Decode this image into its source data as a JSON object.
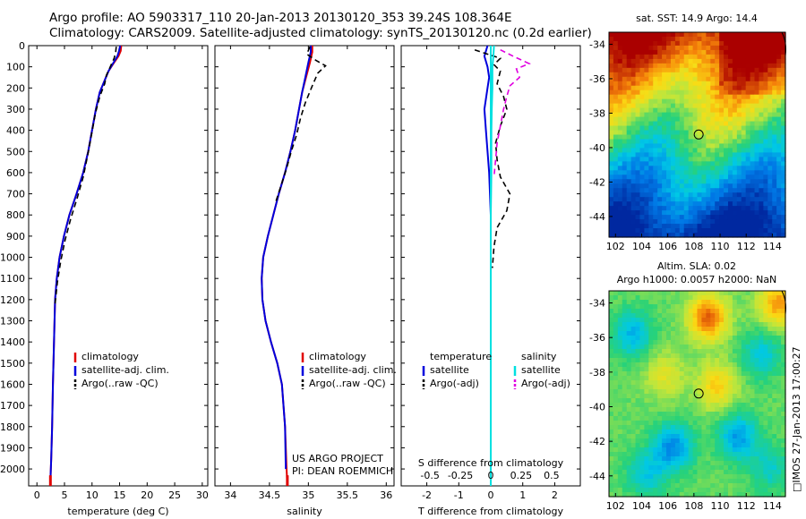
{
  "title": {
    "line1": "Argo profile: AO 5903317_110 20-Jan-2013 20130120_353 39.24S 108.364E",
    "line2": "Climatology: CARS2009. Satellite-adjusted climatology: synTS_20130120.nc (0.2d earlier)"
  },
  "map_top_title": "sat. SST: 14.9 Argo: 14.4",
  "map_bottom_title1": "Altim. SLA: 0.02",
  "map_bottom_title2": "Argo h1000: 0.0057 h2000: NaN",
  "side_text": "□IMOS 27-Jan-2013 17:00:27",
  "credit": {
    "line1": "US ARGO PROJECT",
    "line2": "PI: DEAN ROEMMICH"
  },
  "colors": {
    "climatology": "#e00000",
    "satellite": "#0000dd",
    "argo": "#000000",
    "sal_satellite": "#00e0e0",
    "sal_argo": "#e000e0"
  },
  "chart_data": [
    {
      "type": "line",
      "name_key": "temperature",
      "xlabel": "temperature (deg C)",
      "ylabel": "",
      "xlim": [
        -1.5,
        31
      ],
      "ylim": [
        0,
        2080
      ],
      "xticks": [
        0,
        5,
        10,
        15,
        20,
        25,
        30
      ],
      "xticklabels": [
        "0",
        "5",
        "10",
        "15",
        "20",
        "25",
        "30"
      ],
      "yticks": [
        0,
        100,
        200,
        300,
        400,
        500,
        600,
        700,
        800,
        900,
        1000,
        1100,
        1200,
        1300,
        1400,
        1500,
        1600,
        1700,
        1800,
        1900,
        2000
      ],
      "legend": [
        "climatology",
        "satellite-adj. clim.",
        "Argo(..raw -QC)"
      ],
      "series": [
        {
          "name": "climatology",
          "style": "solid",
          "color_key": "climatology",
          "x": [
            15.3,
            15.2,
            14.8,
            14.0,
            13.0,
            12.2,
            11.4,
            10.7,
            10.0,
            9.3,
            8.4,
            7.2,
            5.9,
            4.9,
            4.1,
            3.6,
            3.3,
            3.1,
            2.9,
            2.75,
            2.6,
            2.5,
            2.45
          ],
          "y": [
            0,
            25,
            50,
            80,
            120,
            170,
            220,
            300,
            400,
            500,
            600,
            700,
            800,
            900,
            1000,
            1100,
            1200,
            1400,
            1600,
            1800,
            1950,
            2020,
            2080
          ]
        },
        {
          "name": "satellite-adj. clim.",
          "style": "solid",
          "color_key": "satellite",
          "x": [
            15.1,
            14.9,
            14.6,
            13.9,
            13.0,
            12.2,
            11.4,
            10.7,
            10.0,
            9.3,
            8.4,
            7.2,
            5.9,
            4.9,
            4.1,
            3.6,
            3.3,
            3.1,
            2.9,
            2.75,
            2.6,
            2.5,
            2.45
          ],
          "y": [
            0,
            25,
            50,
            80,
            120,
            170,
            220,
            300,
            400,
            500,
            600,
            700,
            800,
            900,
            1000,
            1100,
            1200,
            1400,
            1600,
            1800,
            1950,
            2020,
            2060
          ]
        },
        {
          "name": "Argo(..raw -QC)",
          "style": "dash",
          "color_key": "argo",
          "x": [
            14.4,
            14.3,
            14.0,
            13.3,
            12.6,
            12.3,
            11.4,
            10.6,
            9.9,
            9.2,
            8.4,
            7.3,
            6.1,
            5.1,
            4.3,
            3.7,
            3.3
          ],
          "y": [
            5,
            30,
            60,
            100,
            140,
            180,
            240,
            320,
            420,
            520,
            620,
            720,
            820,
            920,
            1020,
            1120,
            1220
          ]
        }
      ]
    },
    {
      "type": "line",
      "name_key": "salinity",
      "xlabel": "salinity",
      "ylabel": "",
      "xlim": [
        33.8,
        36.1
      ],
      "ylim": [
        0,
        2080
      ],
      "xticks": [
        34,
        34.5,
        35,
        35.5,
        36
      ],
      "xticklabels": [
        "34",
        "34.5",
        "35",
        "35.5",
        "36"
      ],
      "yticks": [
        0,
        100,
        200,
        300,
        400,
        500,
        600,
        700,
        800,
        900,
        1000,
        1100,
        1200,
        1300,
        1400,
        1500,
        1600,
        1700,
        1800,
        1900,
        2000
      ],
      "legend": [
        "climatology",
        "satellite-adj. clim.",
        "Argo(..raw -QC)"
      ],
      "series": [
        {
          "name": "climatology",
          "style": "solid",
          "color_key": "climatology",
          "x": [
            35.05,
            35.05,
            35.02,
            34.97,
            34.92,
            34.88,
            34.83,
            34.77,
            34.7,
            34.62,
            34.55,
            34.48,
            34.42,
            34.4,
            34.41,
            34.45,
            34.52,
            34.6,
            34.66,
            34.7,
            34.72,
            34.73
          ],
          "y": [
            0,
            30,
            80,
            150,
            220,
            300,
            400,
            500,
            600,
            700,
            800,
            900,
            1000,
            1100,
            1200,
            1300,
            1400,
            1500,
            1600,
            1800,
            2000,
            2080
          ]
        },
        {
          "name": "satellite-adj. clim.",
          "style": "solid",
          "color_key": "satellite",
          "x": [
            35.03,
            35.03,
            35.0,
            34.96,
            34.92,
            34.88,
            34.83,
            34.77,
            34.7,
            34.62,
            34.55,
            34.48,
            34.42,
            34.4,
            34.41,
            34.45,
            34.52,
            34.6,
            34.66,
            34.7,
            34.71
          ],
          "y": [
            0,
            30,
            80,
            150,
            220,
            300,
            400,
            500,
            600,
            700,
            800,
            900,
            1000,
            1100,
            1200,
            1300,
            1400,
            1500,
            1600,
            1800,
            2000
          ]
        },
        {
          "name": "Argo(..raw -QC)",
          "style": "dash",
          "color_key": "argo",
          "x": [
            35.02,
            34.98,
            35.1,
            35.22,
            35.12,
            35.05,
            34.96,
            34.9,
            34.85,
            34.78,
            34.72,
            34.65,
            34.58
          ],
          "y": [
            5,
            40,
            70,
            95,
            130,
            190,
            270,
            340,
            420,
            500,
            580,
            660,
            740
          ]
        }
      ]
    },
    {
      "type": "line",
      "name_key": "difference",
      "xlabel": "T difference from climatology",
      "xlabel_top": "S difference from climatology",
      "ylabel": "",
      "xlim": [
        -2.8,
        2.8
      ],
      "ylim": [
        0,
        2080
      ],
      "xticks": [
        -2,
        -1,
        0,
        1,
        2
      ],
      "xticklabels": [
        "-2",
        "-1",
        "0",
        "1",
        "2"
      ],
      "sticks": [
        -0.5,
        -0.25,
        0,
        0.25,
        0.5
      ],
      "sticklabels": [
        "-0.5",
        "-0.25",
        "0",
        "0.25",
        "0.5"
      ],
      "sticks_x_T": [
        -1.9,
        -0.95,
        0,
        0.95,
        1.9
      ],
      "yticks": [
        0,
        100,
        200,
        300,
        400,
        500,
        600,
        700,
        800,
        900,
        1000,
        1100,
        1200,
        1300,
        1400,
        1500,
        1600,
        1700,
        1800,
        1900,
        2000
      ],
      "legend_temperature": [
        "temperature",
        "satellite",
        "Argo(-adj)"
      ],
      "legend_salinity": [
        "salinity",
        "satellite",
        "Argo(-adj)"
      ],
      "series": [
        {
          "name": "temperature satellite",
          "style": "solid",
          "color_key": "satellite",
          "x": [
            -0.1,
            -0.2,
            -0.1,
            -0.05,
            -0.1,
            -0.2,
            -0.15,
            -0.1,
            -0.05,
            0,
            0,
            0,
            0,
            0
          ],
          "y": [
            0,
            50,
            100,
            150,
            200,
            300,
            400,
            500,
            600,
            800,
            1000,
            1400,
            1800,
            2060
          ]
        },
        {
          "name": "temperature Argo(-adj)",
          "style": "dash",
          "color_key": "argo",
          "x": [
            -0.5,
            -0.1,
            0.3,
            0.1,
            0.3,
            0.2,
            0.4,
            0.5,
            0.3,
            0.15,
            0.2,
            0.3,
            0.6,
            0.5,
            0.2,
            0.1,
            0.05
          ],
          "y": [
            20,
            40,
            60,
            90,
            120,
            180,
            240,
            300,
            380,
            460,
            540,
            620,
            700,
            780,
            860,
            950,
            1050
          ]
        },
        {
          "name": "salinity satellite",
          "style": "solid",
          "color_key": "sal_satellite",
          "x": [
            0.1,
            0.08,
            0.05,
            0.05,
            0.03,
            0.02,
            0.02,
            0,
            0,
            0,
            0,
            0
          ],
          "y": [
            0,
            50,
            100,
            200,
            300,
            400,
            600,
            800,
            1000,
            1400,
            1800,
            2060
          ]
        },
        {
          "name": "salinity Argo(-adj)",
          "style": "dash",
          "color_key": "sal_argo",
          "x": [
            0.3,
            0.7,
            1.2,
            0.8,
            0.9,
            0.6,
            0.5,
            0.4,
            0.3,
            0.2,
            0.15,
            0.1
          ],
          "y": [
            20,
            50,
            85,
            110,
            150,
            190,
            240,
            300,
            380,
            460,
            540,
            620
          ]
        }
      ]
    },
    {
      "type": "heatmap",
      "name_key": "sst_map",
      "xlim": [
        101.5,
        115
      ],
      "ylim": [
        -45.2,
        -33.3
      ],
      "xticks": [
        102,
        104,
        106,
        108,
        110,
        112,
        114
      ],
      "xticklabels": [
        "102",
        "104",
        "106",
        "108",
        "110",
        "112",
        "114"
      ],
      "yticks": [
        -34,
        -36,
        -38,
        -40,
        -42,
        -44
      ],
      "yticklabels": [
        "-34",
        "-36",
        "-38",
        "-40",
        "-42",
        "-44"
      ],
      "marker": {
        "x": 108.364,
        "y": -39.24
      }
    },
    {
      "type": "heatmap",
      "name_key": "sla_map",
      "xlim": [
        101.5,
        115
      ],
      "ylim": [
        -45.2,
        -33.3
      ],
      "xticks": [
        102,
        104,
        106,
        108,
        110,
        112,
        114
      ],
      "xticklabels": [
        "102",
        "104",
        "106",
        "108",
        "110",
        "112",
        "114"
      ],
      "yticks": [
        -34,
        -36,
        -38,
        -40,
        -42,
        -44
      ],
      "yticklabels": [
        "-34",
        "-36",
        "-38",
        "-40",
        "-42",
        "-44"
      ],
      "marker": {
        "x": 108.364,
        "y": -39.24
      }
    }
  ]
}
